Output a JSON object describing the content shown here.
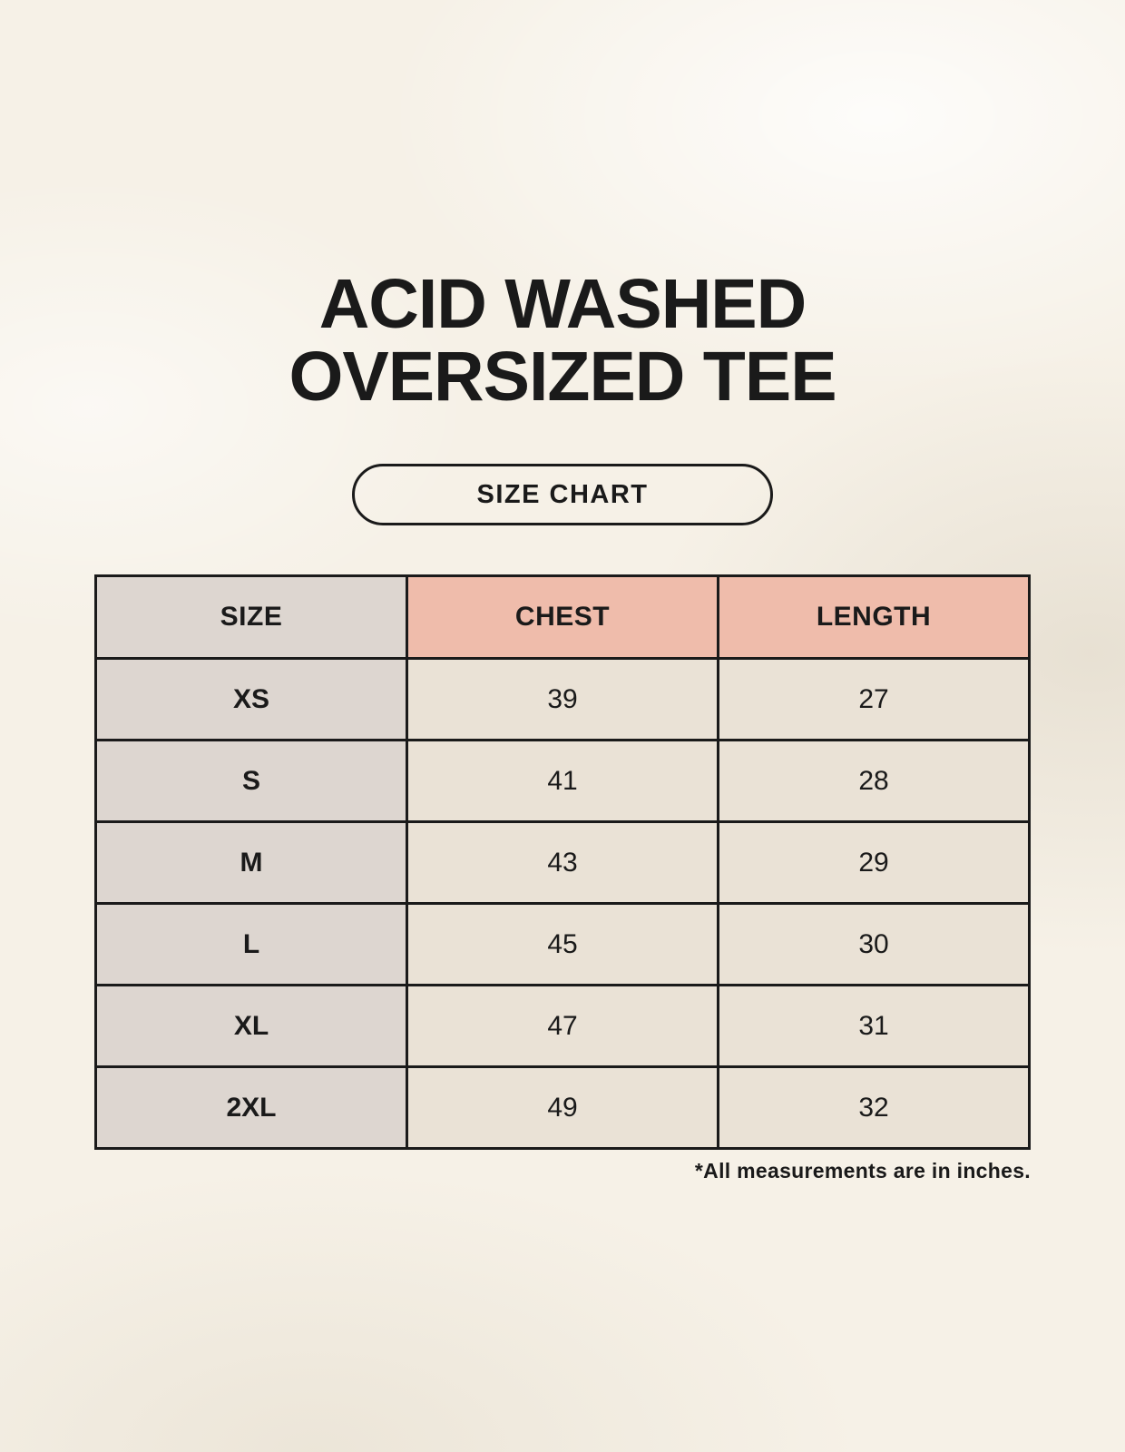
{
  "header": {
    "title_line1": "ACID WASHED",
    "title_line2": "OVERSIZED TEE"
  },
  "badge": {
    "label": "SIZE CHART"
  },
  "chart_data": {
    "type": "table",
    "title": "ACID WASHED OVERSIZED TEE",
    "subtitle": "SIZE CHART",
    "columns": [
      "SIZE",
      "CHEST",
      "LENGTH"
    ],
    "rows": [
      [
        "XS",
        "39",
        "27"
      ],
      [
        "S",
        "41",
        "28"
      ],
      [
        "M",
        "43",
        "29"
      ],
      [
        "L",
        "45",
        "30"
      ],
      [
        "XL",
        "47",
        "31"
      ],
      [
        "2XL",
        "49",
        "32"
      ]
    ],
    "unit_note": "*All measurements are in inches."
  },
  "footnote": "*All measurements are in inches.",
  "colors": {
    "page_background": "#f6f1e7",
    "header_accent": "#efbcab",
    "size_column": "#ddd6d0",
    "cell_background": "#eae2d6",
    "border": "#1a1a1a",
    "text": "#1a1a1a"
  }
}
